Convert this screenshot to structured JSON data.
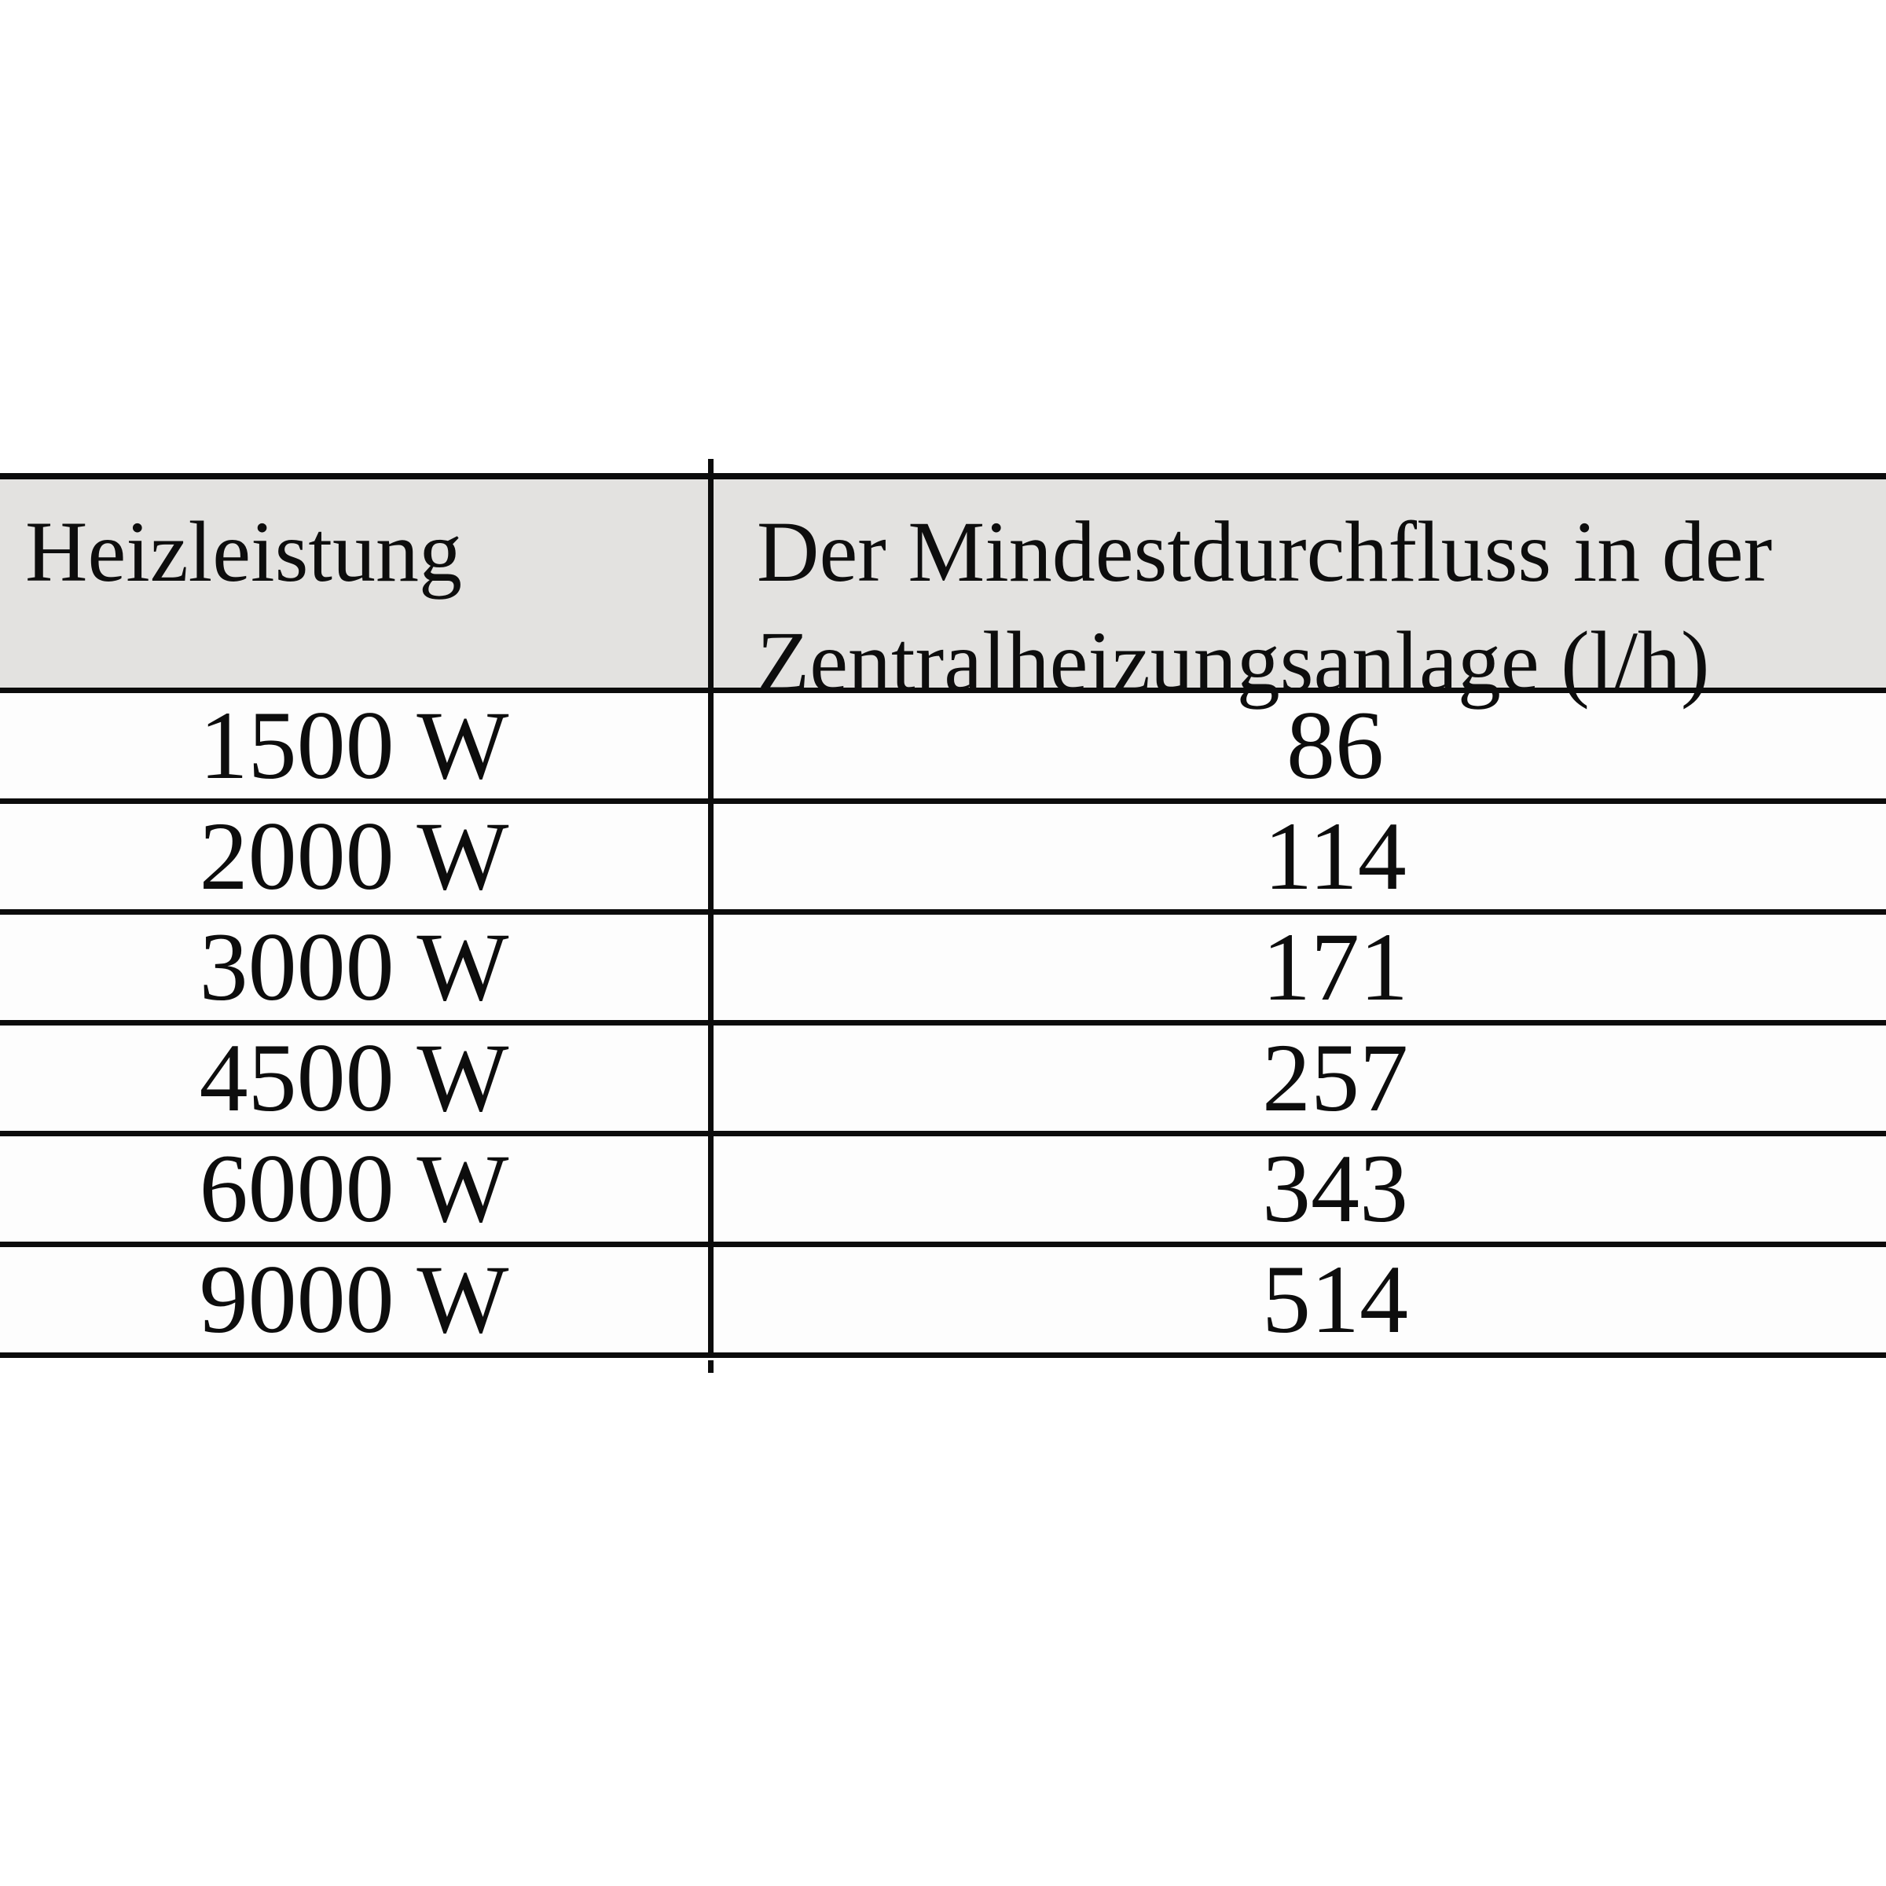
{
  "colors": {
    "page_bg": "#ffffff",
    "header_bg": "#e3e2e0",
    "border": "#0c0c0c",
    "text": "#0d0d0d"
  },
  "table": {
    "header": {
      "col1": "Heizleistung",
      "col2_line1": "Der Mindestdurchfluss in der",
      "col2_line2": "Zentralheizungsanlage (l/h)"
    },
    "rows": [
      {
        "power": "1500 W",
        "flow": "86"
      },
      {
        "power": "2000 W",
        "flow": "114"
      },
      {
        "power": "3000 W",
        "flow": "171"
      },
      {
        "power": "4500 W",
        "flow": "257"
      },
      {
        "power": "6000 W",
        "flow": "343"
      },
      {
        "power": "9000 W",
        "flow": "514"
      }
    ]
  },
  "chart_data": {
    "type": "table",
    "columns": [
      "Heizleistung",
      "Der Mindestdurchfluss in der Zentralheizungsanlage (l/h)"
    ],
    "rows": [
      [
        "1500 W",
        86
      ],
      [
        "2000 W",
        114
      ],
      [
        "3000 W",
        171
      ],
      [
        "4500 W",
        257
      ],
      [
        "6000 W",
        343
      ],
      [
        "9000 W",
        514
      ]
    ]
  }
}
